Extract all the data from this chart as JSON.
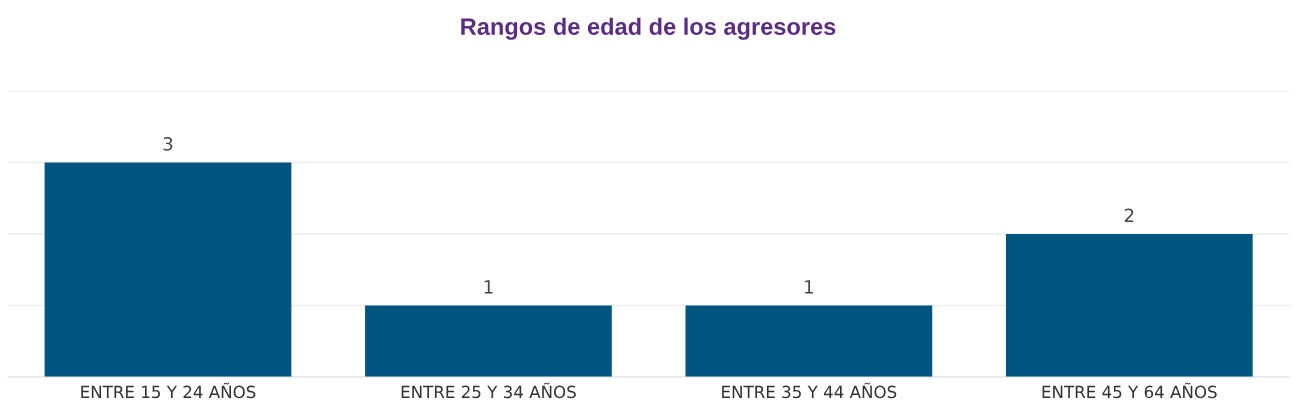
{
  "chart_data": {
    "type": "bar",
    "title": "Rangos de edad de los agresores",
    "categories": [
      "ENTRE 15 Y 24 AÑOS",
      "ENTRE 25 Y 34 AÑOS",
      "ENTRE 35 Y 44 AÑOS",
      "ENTRE 45 Y 64 AÑOS"
    ],
    "values": [
      3,
      1,
      1,
      2
    ],
    "color": "#005580",
    "ylim": [
      0,
      4
    ],
    "yticks": [
      {
        "value": 0,
        "label": null
      },
      {
        "value": 1,
        "label": null
      },
      {
        "value": 2,
        "label": null
      },
      {
        "value": 3,
        "label": null
      },
      {
        "value": 4,
        "label": null
      }
    ],
    "grid": "y",
    "data_labels": true,
    "tick_labels": "x"
  }
}
